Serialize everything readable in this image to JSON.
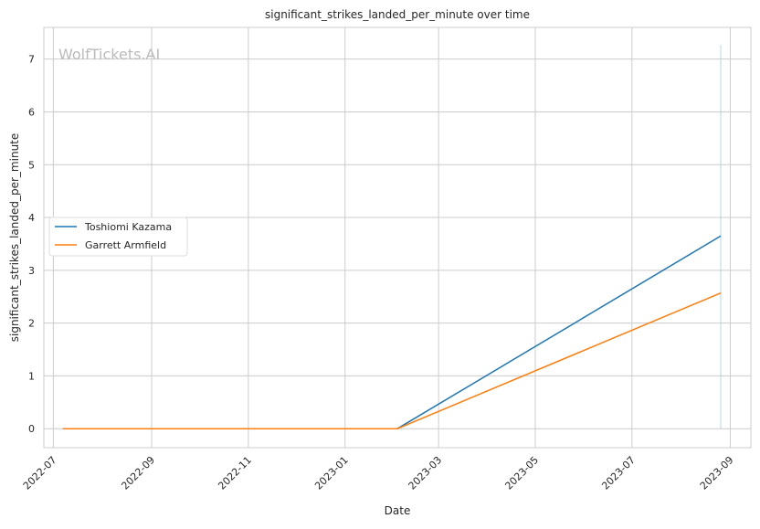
{
  "chart_data": {
    "type": "line",
    "title": "significant_strikes_landed_per_minute over time",
    "xlabel": "Date",
    "ylabel": "significant_strikes_landed_per_minute",
    "watermark": "WolfTickets.AI",
    "x_ticks": [
      "2022-07",
      "2022-09",
      "2022-11",
      "2023-01",
      "2023-03",
      "2023-05",
      "2023-07",
      "2023-09"
    ],
    "y_ticks": [
      0,
      1,
      2,
      3,
      4,
      5,
      6,
      7
    ],
    "xlim": [
      "2022-06-25",
      "2023-09-14"
    ],
    "ylim": [
      -0.36,
      7.6
    ],
    "grid": true,
    "legend_position": "center-left",
    "series": [
      {
        "name": "Toshiomi Kazama",
        "color": "#1f77b4",
        "x": [
          "2022-07-07",
          "2023-02-03",
          "2023-08-26"
        ],
        "y": [
          0,
          0,
          3.65
        ]
      },
      {
        "name": "Garrett Armfield",
        "color": "#ff7f0e",
        "x": [
          "2022-07-07",
          "2023-02-03",
          "2023-08-26"
        ],
        "y": [
          0,
          0,
          2.57
        ]
      }
    ],
    "vertical_band": {
      "x": "2023-08-26",
      "y": [
        0,
        7.27
      ],
      "color": "#a6cee3"
    }
  }
}
